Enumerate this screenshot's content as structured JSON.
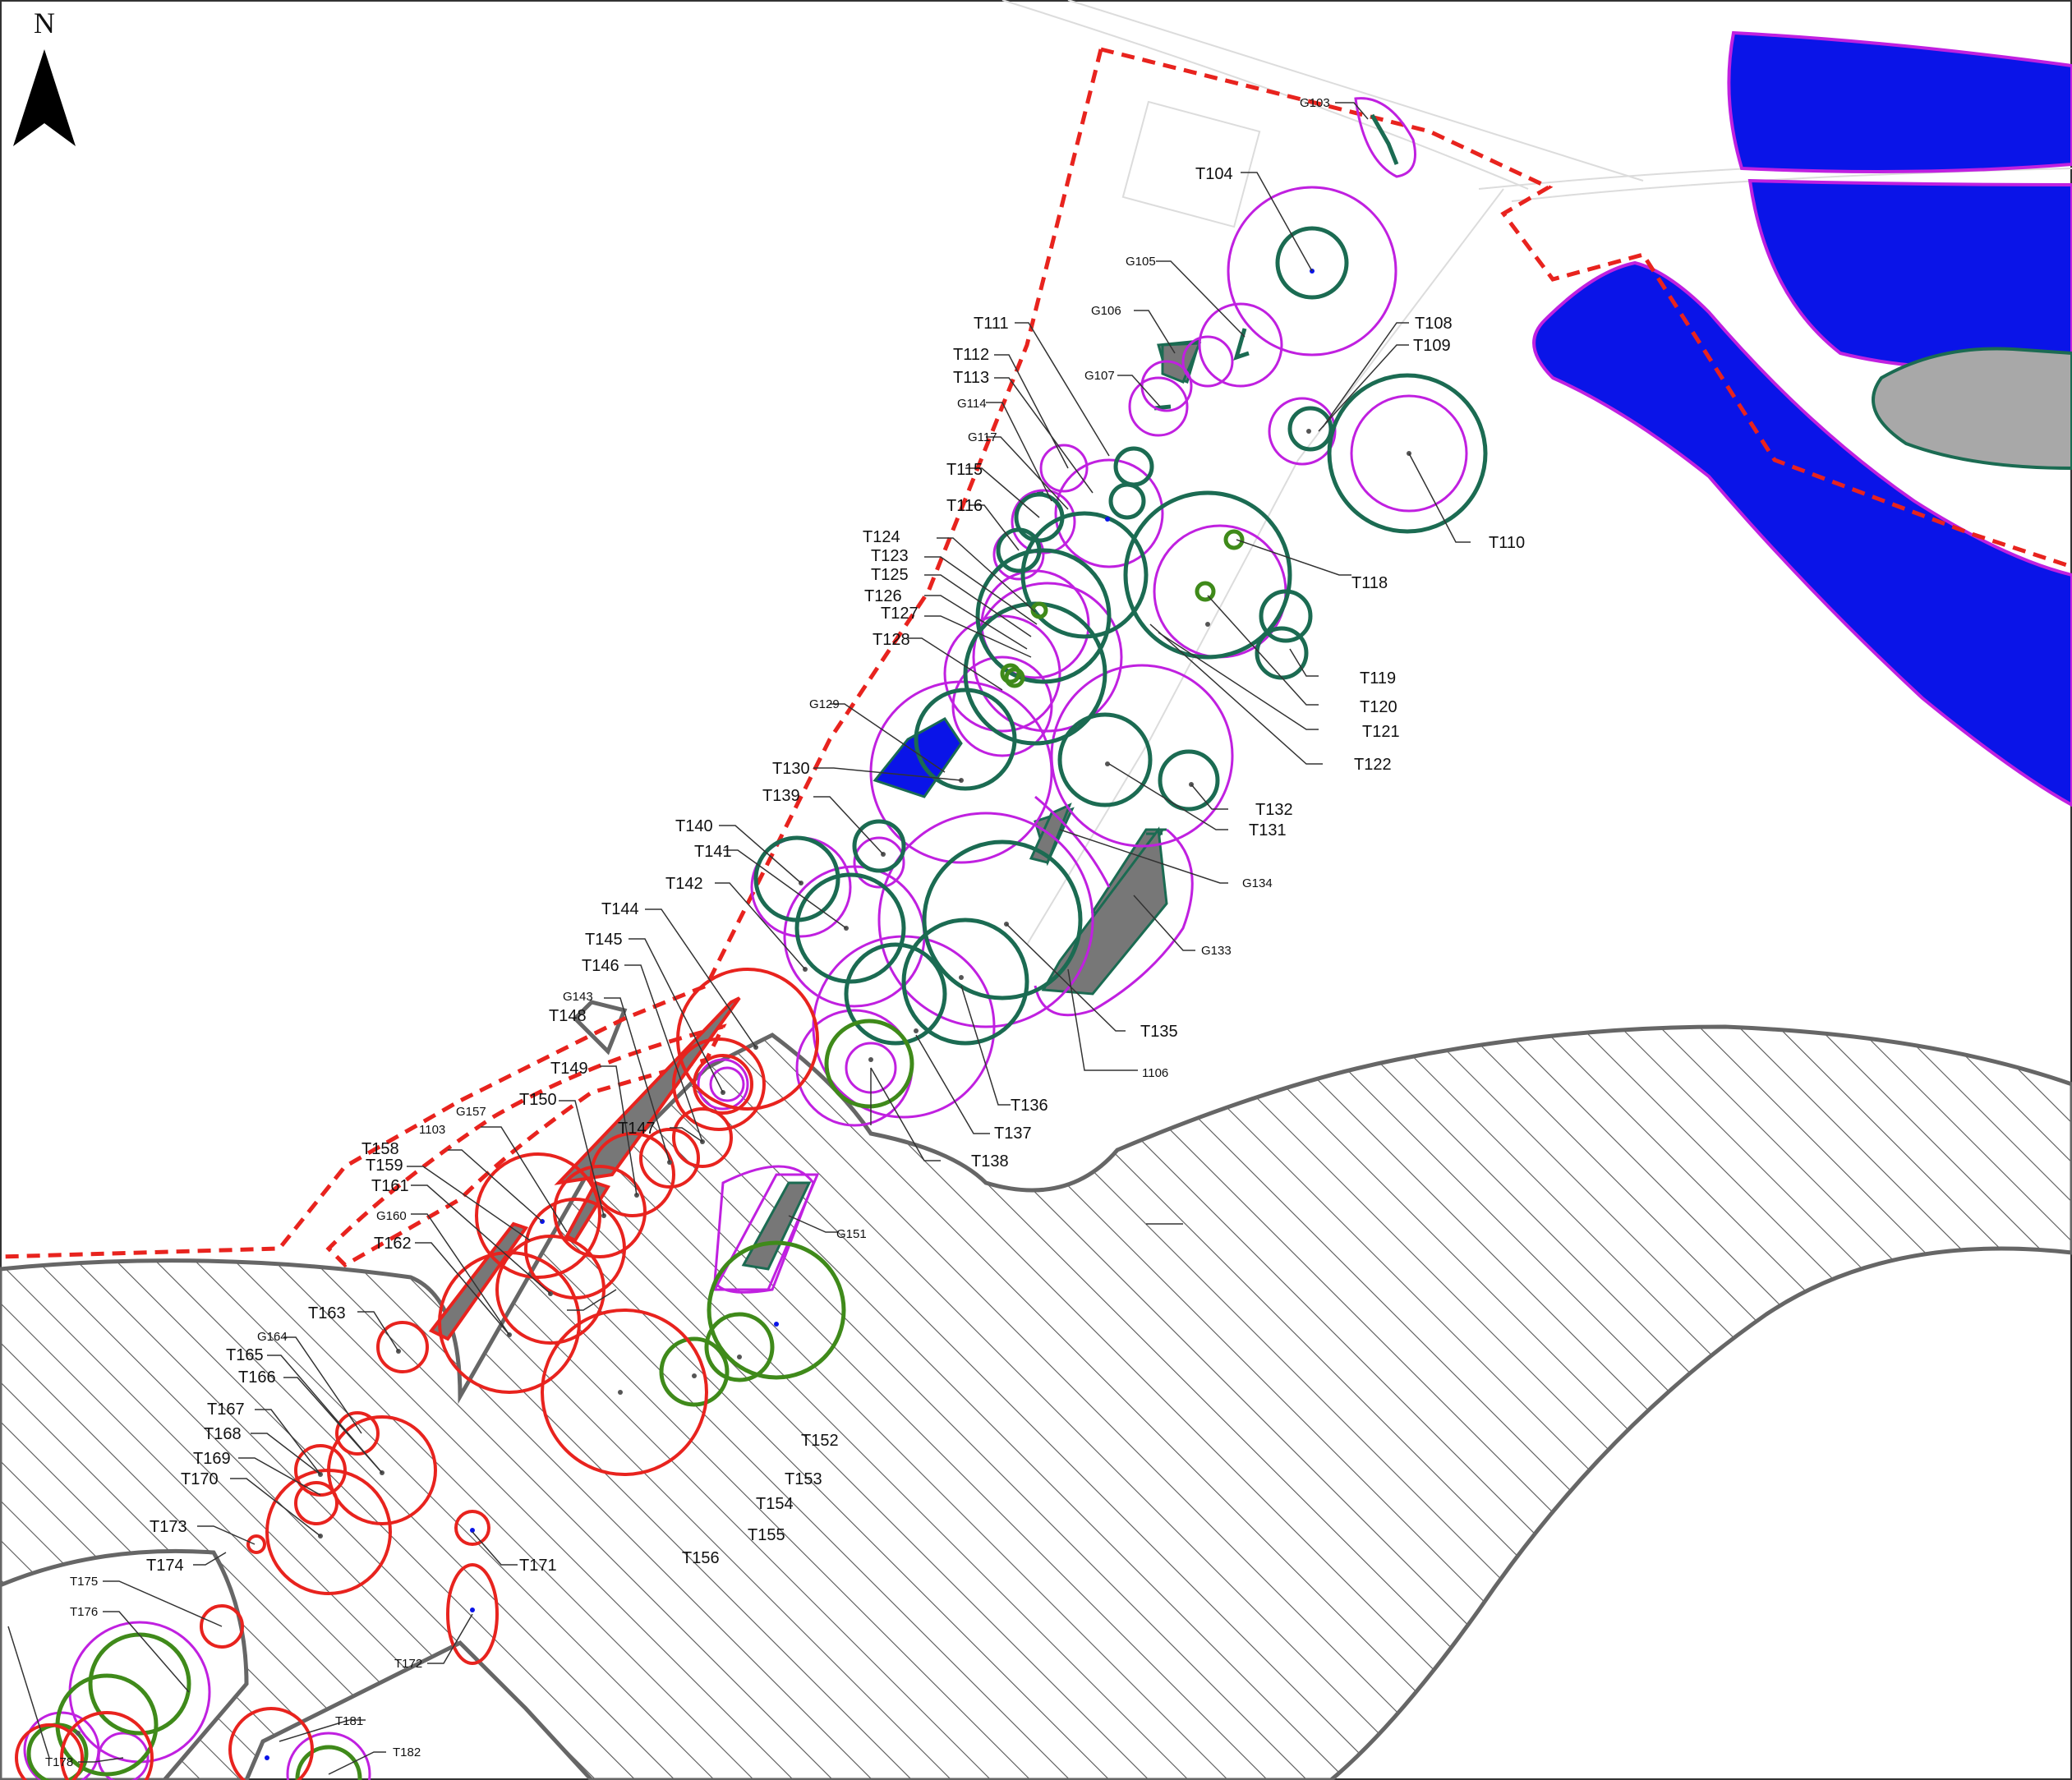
{
  "north_label": "N",
  "colors": {
    "boundary": "#e8231e",
    "crown_magenta": "#c020e0",
    "crown_green": "#1b6b52",
    "crown_olive": "#3f8a1a",
    "crown_red": "#e8231e",
    "water_fill": "#0a14e8",
    "grey_fill": "#a8a8a8",
    "hatch": "#555555",
    "leader": "#333333"
  },
  "labels": {
    "T104": "T104",
    "G103": "G103",
    "G105": "G105",
    "G106": "G106",
    "G107": "G107",
    "T108": "T108",
    "T109": "T109",
    "T110": "T110",
    "T111": "T111",
    "T112": "T112",
    "T113": "T113",
    "G114": "G114",
    "T115": "T115",
    "T116": "T116",
    "G117": "G117",
    "T118": "T118",
    "T119": "T119",
    "T120": "T120",
    "T121": "T121",
    "T122": "T122",
    "T123": "T123",
    "T124": "T124",
    "T125": "T125",
    "T126": "T126",
    "T127": "T127",
    "T128": "T128",
    "G129": "G129",
    "T130": "T130",
    "T131": "T131",
    "T132": "T132",
    "G133": "G133",
    "G134": "G134",
    "T135": "T135",
    "T136": "T136",
    "T137": "T137",
    "T138": "T138",
    "T139": "T139",
    "T140": "T140",
    "T141": "T141",
    "T142": "T142",
    "G143": "G143",
    "T144": "T144",
    "T145": "T145",
    "T146": "T146",
    "T147": "T147",
    "T148": "T148",
    "T149": "T149",
    "T150": "T150",
    "G151": "G151",
    "T152": "T152",
    "T153": "T153",
    "T154": "T154",
    "T155": "T155",
    "T156": "T156",
    "G157": "G157",
    "T158": "T158",
    "T159": "T159",
    "G160": "G160",
    "T161": "T161",
    "T162": "T162",
    "T163": "T163",
    "G164": "G164",
    "T165": "T165",
    "T166": "T166",
    "T167": "T167",
    "T168": "T168",
    "T169": "T169",
    "T170": "T170",
    "T171": "T171",
    "T172": "T172",
    "T173": "T173",
    "T174": "T174",
    "T175": "T175",
    "T176": "T176",
    "T178": "T178",
    "T181": "T181",
    "T182": "T182",
    "1103": "1103",
    "1106": "1106"
  }
}
